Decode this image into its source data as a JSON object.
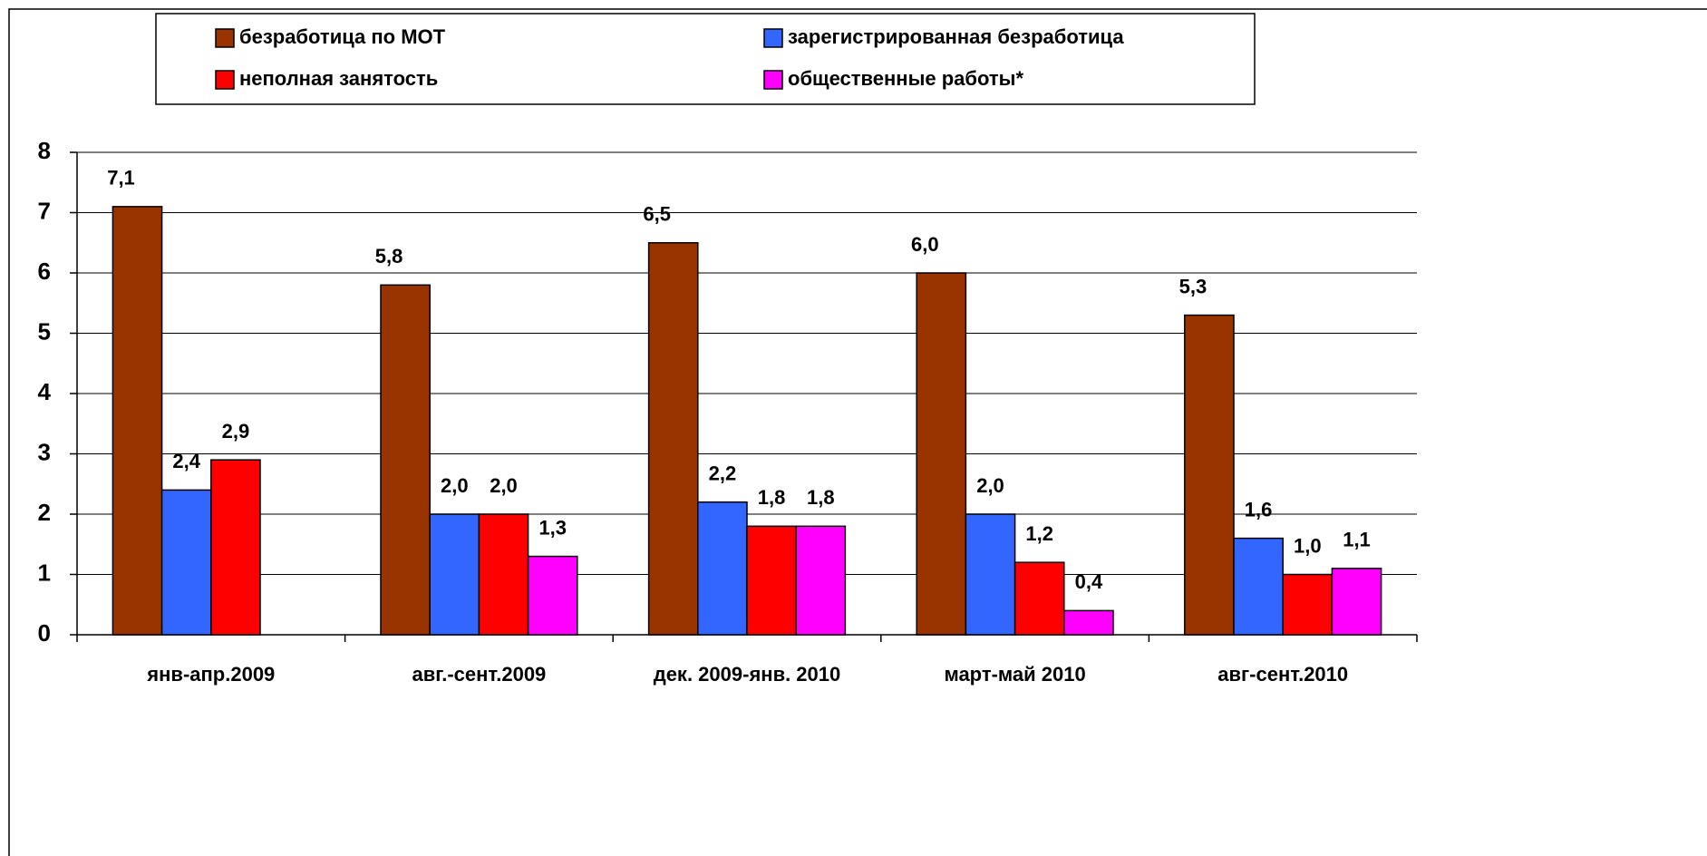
{
  "chart_data": {
    "type": "bar",
    "categories": [
      "янв-апр.2009",
      "авг.-сент.2009",
      "дек. 2009-янв. 2010",
      "март-май 2010",
      "авг-сент.2010"
    ],
    "series": [
      {
        "name": "безработица по МОТ",
        "color": "#993300",
        "values": [
          7.1,
          5.8,
          6.5,
          6.0,
          5.3
        ],
        "value_labels": [
          "7,1",
          "5,8",
          "6,5",
          "6,0",
          "5,3"
        ]
      },
      {
        "name": "зарегистрированная безработица",
        "color": "#3366ff",
        "values": [
          2.4,
          2.0,
          2.2,
          2.0,
          1.6
        ],
        "value_labels": [
          "2,4",
          "2,0",
          "2,2",
          "2,0",
          "1,6"
        ]
      },
      {
        "name": "неполная занятость",
        "color": "#ff0000",
        "values": [
          2.9,
          2.0,
          1.8,
          1.2,
          1.0
        ],
        "value_labels": [
          "2,9",
          "2,0",
          "1,8",
          "1,2",
          "1,0"
        ]
      },
      {
        "name": "общественные работы*",
        "color": "#ff00ff",
        "values": [
          null,
          1.3,
          1.8,
          0.4,
          1.1
        ],
        "value_labels": [
          null,
          "1,3",
          "1,8",
          "0,4",
          "1,1"
        ]
      }
    ],
    "ylim": [
      0,
      8
    ],
    "yticks": [
      0,
      1,
      2,
      3,
      4,
      5,
      6,
      7,
      8
    ],
    "grid": true
  }
}
